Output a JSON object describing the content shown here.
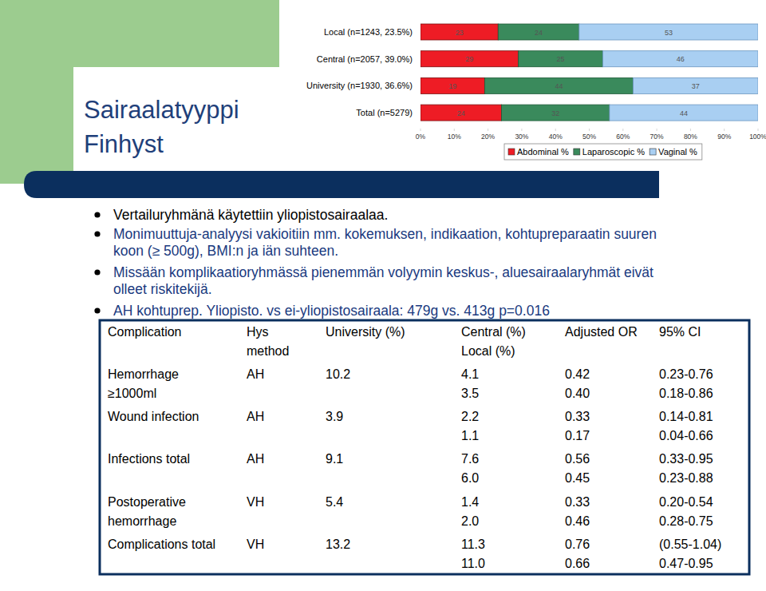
{
  "slide": {
    "title": [
      "Sairaalatyyppi",
      "Finhyst"
    ],
    "bullets": [
      [
        "Vertailuryhmänä käytettiin yliopistosairaalaa."
      ],
      [
        "Monimuuttuja-analyysi vakioitiin mm. kokemuksen, indikaation, kohtupreparaatin suuren",
        "koon (≥ 500g), BMI:n ja iän suhteen."
      ],
      [
        "Missään komplikaatioryhmässä pienemmän volyymin keskus-, aluesairaalaryhmät eivät",
        "olleet riskitekijä."
      ],
      [
        "AH kohtuprep. Yliopisto. vs ei-yliopistosairaala: 479g vs. 413g p=0.016"
      ]
    ]
  },
  "table": {
    "header": [
      [
        "Complication"
      ],
      [
        "Hys",
        "method"
      ],
      [
        "University (%)"
      ],
      [
        "Central (%)",
        "Local (%)"
      ],
      [
        "Adjusted OR"
      ],
      [
        "95% CI"
      ]
    ],
    "rows": [
      [
        [
          "Hemorrhage",
          "≥1000ml"
        ],
        [
          "AH"
        ],
        [
          "10.2"
        ],
        [
          "4.1",
          "3.5"
        ],
        [
          "0.42",
          "0.40"
        ],
        [
          "0.23-0.76",
          "0.18-0.86"
        ]
      ],
      [
        [
          "Wound infection"
        ],
        [
          "AH"
        ],
        [
          "3.9"
        ],
        [
          "2.2",
          "1.1"
        ],
        [
          "0.33",
          "0.17"
        ],
        [
          "0.14-0.81",
          "0.04-0.66"
        ]
      ],
      [
        [
          "Infections total"
        ],
        [
          "AH"
        ],
        [
          "9.1"
        ],
        [
          "7.6",
          "6.0"
        ],
        [
          "0.56",
          "0.45"
        ],
        [
          "0.33-0.95",
          "0.23-0.88"
        ]
      ],
      [
        [
          "Postoperative",
          "hemorrhage"
        ],
        [
          "VH"
        ],
        [
          "5.4"
        ],
        [
          "1.4",
          "2.0"
        ],
        [
          "0.33",
          "0.46"
        ],
        [
          "0.20-0.54",
          "0.28-0.75"
        ]
      ],
      [
        [
          "Complications total"
        ],
        [
          "VH"
        ],
        [
          "13.2"
        ],
        [
          "11.3",
          "11.0"
        ],
        [
          "0.76",
          "0.66"
        ],
        [
          "(0.55-1.04)",
          "0.47-0.95"
        ]
      ]
    ]
  },
  "chart_data": {
    "type": "bar",
    "orientation": "horizontal",
    "stacked": true,
    "data_labels": true,
    "legend": "bottom",
    "categories": [
      "Local (n=1243, 23.5%)",
      "Central (n=2057, 39.0%)",
      "University (n=1930, 36.6%)",
      "Total (n=5279)"
    ],
    "series": [
      {
        "name": "Abdominal %",
        "color": "#ee1c25",
        "values": [
          23,
          29,
          19,
          24
        ]
      },
      {
        "name": "Laparoscopic %",
        "color": "#3a8a5c",
        "values": [
          24,
          25,
          44,
          32
        ]
      },
      {
        "name": "Vaginal %",
        "color": "#a9cff2",
        "values": [
          53,
          46,
          37,
          44
        ]
      }
    ],
    "xlim": [
      0,
      100
    ],
    "xticks": [
      {
        "value": 0,
        "label": "0%"
      },
      {
        "value": 10,
        "label": "10%"
      },
      {
        "value": 20,
        "label": "20%"
      },
      {
        "value": 30,
        "label": "30%"
      },
      {
        "value": 40,
        "label": "40%"
      },
      {
        "value": 50,
        "label": "50%"
      },
      {
        "value": 60,
        "label": "60%"
      },
      {
        "value": 70,
        "label": "70%"
      },
      {
        "value": 80,
        "label": "80%"
      },
      {
        "value": 90,
        "label": "90%"
      },
      {
        "value": 100,
        "label": "100%"
      }
    ]
  }
}
